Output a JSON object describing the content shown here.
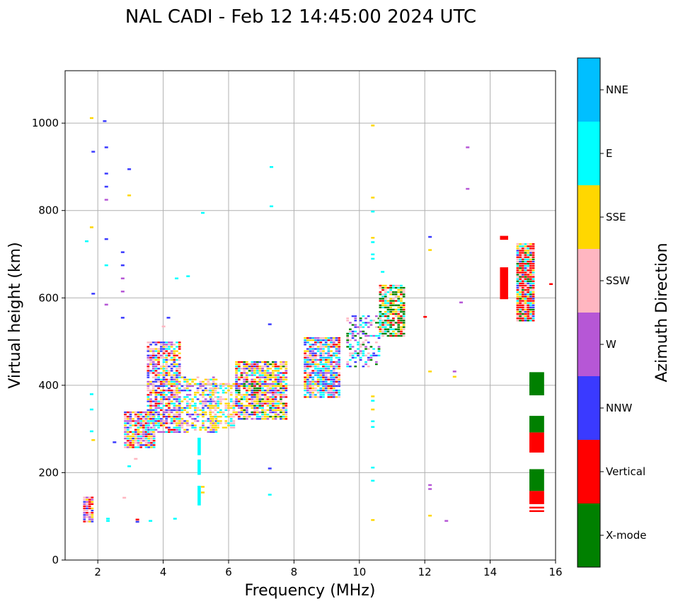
{
  "chart_data": {
    "type": "scatter",
    "title": "NAL CADI - Feb 12 14:45:00 2024 UTC",
    "xlabel": "Frequency (MHz)",
    "ylabel": "Virtual height (km)",
    "xlim": [
      1,
      16
    ],
    "ylim": [
      0,
      1120
    ],
    "xticks": [
      2,
      4,
      6,
      8,
      10,
      12,
      14,
      16
    ],
    "yticks": [
      0,
      200,
      400,
      600,
      800,
      1000
    ],
    "grid": true,
    "colorbar": {
      "label": "Azimuth Direction",
      "categories": [
        {
          "name": "X-mode",
          "color": "#008000"
        },
        {
          "name": "Vertical",
          "color": "#ff0000"
        },
        {
          "name": "NNW",
          "color": "#3a3aff"
        },
        {
          "name": "W",
          "color": "#b657d6"
        },
        {
          "name": "SSW",
          "color": "#ffb6c1"
        },
        {
          "name": "SSE",
          "color": "#ffd700"
        },
        {
          "name": "E",
          "color": "#00ffff"
        },
        {
          "name": "NNE",
          "color": "#00bfff"
        }
      ]
    },
    "clusters": [
      {
        "x": [
          1.55,
          1.8
        ],
        "y": [
          85,
          145
        ],
        "mix": [
          "Vertical",
          "Vertical",
          "SSW",
          "SSE",
          "W",
          "NNW"
        ],
        "density": 0.9
      },
      {
        "x": [
          2.8,
          3.7
        ],
        "y": [
          255,
          340
        ],
        "mix": [
          "Vertical",
          "E",
          "SSE",
          "NNW",
          "W",
          "SSW"
        ],
        "density": 0.85
      },
      {
        "x": [
          3.5,
          4.5
        ],
        "y": [
          290,
          500
        ],
        "mix": [
          "E",
          "Vertical",
          "SSE",
          "NNW",
          "W",
          "SSW"
        ],
        "density": 0.75
      },
      {
        "x": [
          4.3,
          5.6
        ],
        "y": [
          290,
          420
        ],
        "mix": [
          "E",
          "SSE",
          "SSE",
          "SSW",
          "NNW",
          "W"
        ],
        "density": 0.55
      },
      {
        "x": [
          5.4,
          6.2
        ],
        "y": [
          300,
          405
        ],
        "mix": [
          "SSE",
          "E",
          "SSE",
          "SSW"
        ],
        "density": 0.6
      },
      {
        "x": [
          6.2,
          7.8
        ],
        "y": [
          320,
          455
        ],
        "mix": [
          "SSE",
          "SSE",
          "SSE",
          "E",
          "X-mode",
          "Vertical",
          "SSW",
          "W",
          "NNW"
        ],
        "density": 0.85
      },
      {
        "x": [
          8.3,
          9.4
        ],
        "y": [
          370,
          510
        ],
        "mix": [
          "W",
          "NNW",
          "E",
          "SSW",
          "NNE",
          "Vertical",
          "SSE"
        ],
        "density": 0.85
      },
      {
        "x": [
          9.6,
          10.6
        ],
        "y": [
          440,
          560
        ],
        "mix": [
          "NNW",
          "W",
          "E",
          "X-mode",
          "SSW"
        ],
        "density": 0.4
      },
      {
        "x": [
          10.6,
          11.4
        ],
        "y": [
          510,
          630
        ],
        "mix": [
          "X-mode",
          "Vertical",
          "SSE",
          "X-mode",
          "E",
          "SSW"
        ],
        "density": 0.85
      },
      {
        "x": [
          14.8,
          15.3
        ],
        "y": [
          545,
          725
        ],
        "mix": [
          "Vertical",
          "Vertical",
          "E",
          "X-mode",
          "NNW",
          "SSW",
          "SSE",
          "Vertical"
        ],
        "density": 1.0
      }
    ],
    "bars": [
      {
        "x": [
          14.3,
          14.55
        ],
        "y": [
          597,
          670
        ],
        "category": "Vertical"
      },
      {
        "x": [
          14.3,
          14.55
        ],
        "y": [
          733,
          742
        ],
        "category": "Vertical"
      },
      {
        "x": [
          15.2,
          15.65
        ],
        "y": [
          377,
          430
        ],
        "category": "X-mode"
      },
      {
        "x": [
          15.2,
          15.65
        ],
        "y": [
          292,
          330
        ],
        "category": "X-mode"
      },
      {
        "x": [
          15.2,
          15.65
        ],
        "y": [
          246,
          292
        ],
        "category": "Vertical"
      },
      {
        "x": [
          15.2,
          15.65
        ],
        "y": [
          158,
          208
        ],
        "category": "X-mode"
      },
      {
        "x": [
          15.2,
          15.65
        ],
        "y": [
          128,
          158
        ],
        "category": "Vertical"
      },
      {
        "x": [
          15.2,
          15.65
        ],
        "y": [
          118,
          122
        ],
        "category": "Vertical"
      },
      {
        "x": [
          15.2,
          15.65
        ],
        "y": [
          110,
          114
        ],
        "category": "Vertical"
      },
      {
        "x": [
          5.05,
          5.15
        ],
        "y": [
          240,
          280
        ],
        "category": "E"
      },
      {
        "x": [
          5.05,
          5.15
        ],
        "y": [
          195,
          230
        ],
        "category": "E"
      },
      {
        "x": [
          5.05,
          5.15
        ],
        "y": [
          125,
          170
        ],
        "category": "E"
      }
    ],
    "points": [
      {
        "x": 1.8,
        "y": 1012,
        "c": "SSE"
      },
      {
        "x": 2.2,
        "y": 1005,
        "c": "NNW"
      },
      {
        "x": 1.85,
        "y": 935,
        "c": "NNW"
      },
      {
        "x": 2.25,
        "y": 945,
        "c": "NNW"
      },
      {
        "x": 2.25,
        "y": 885,
        "c": "NNW"
      },
      {
        "x": 2.25,
        "y": 855,
        "c": "NNW"
      },
      {
        "x": 2.25,
        "y": 825,
        "c": "W"
      },
      {
        "x": 2.95,
        "y": 895,
        "c": "NNW"
      },
      {
        "x": 2.95,
        "y": 835,
        "c": "SSE"
      },
      {
        "x": 1.8,
        "y": 762,
        "c": "SSE"
      },
      {
        "x": 2.25,
        "y": 735,
        "c": "NNW"
      },
      {
        "x": 1.65,
        "y": 730,
        "c": "E"
      },
      {
        "x": 2.25,
        "y": 675,
        "c": "E"
      },
      {
        "x": 2.75,
        "y": 705,
        "c": "NNW"
      },
      {
        "x": 2.75,
        "y": 675,
        "c": "NNW"
      },
      {
        "x": 2.75,
        "y": 645,
        "c": "W"
      },
      {
        "x": 2.75,
        "y": 615,
        "c": "W"
      },
      {
        "x": 1.85,
        "y": 610,
        "c": "NNW"
      },
      {
        "x": 2.25,
        "y": 585,
        "c": "W"
      },
      {
        "x": 2.75,
        "y": 555,
        "c": "NNW"
      },
      {
        "x": 4.4,
        "y": 645,
        "c": "E"
      },
      {
        "x": 4.75,
        "y": 650,
        "c": "E"
      },
      {
        "x": 5.2,
        "y": 795,
        "c": "E"
      },
      {
        "x": 7.3,
        "y": 900,
        "c": "E"
      },
      {
        "x": 7.3,
        "y": 810,
        "c": "E"
      },
      {
        "x": 7.25,
        "y": 540,
        "c": "NNW"
      },
      {
        "x": 7.25,
        "y": 210,
        "c": "NNW"
      },
      {
        "x": 7.25,
        "y": 150,
        "c": "E"
      },
      {
        "x": 10.4,
        "y": 995,
        "c": "SSE"
      },
      {
        "x": 10.4,
        "y": 830,
        "c": "SSE"
      },
      {
        "x": 10.4,
        "y": 798,
        "c": "E"
      },
      {
        "x": 10.4,
        "y": 738,
        "c": "SSE"
      },
      {
        "x": 10.4,
        "y": 728,
        "c": "E"
      },
      {
        "x": 10.4,
        "y": 700,
        "c": "E"
      },
      {
        "x": 10.4,
        "y": 690,
        "c": "E"
      },
      {
        "x": 10.7,
        "y": 660,
        "c": "E"
      },
      {
        "x": 10.4,
        "y": 375,
        "c": "SSE"
      },
      {
        "x": 10.4,
        "y": 365,
        "c": "E"
      },
      {
        "x": 10.4,
        "y": 345,
        "c": "SSE"
      },
      {
        "x": 10.4,
        "y": 318,
        "c": "E"
      },
      {
        "x": 10.4,
        "y": 305,
        "c": "E"
      },
      {
        "x": 10.4,
        "y": 212,
        "c": "E"
      },
      {
        "x": 10.4,
        "y": 182,
        "c": "E"
      },
      {
        "x": 10.4,
        "y": 92,
        "c": "SSE"
      },
      {
        "x": 12.15,
        "y": 740,
        "c": "NNW"
      },
      {
        "x": 12.15,
        "y": 710,
        "c": "SSE"
      },
      {
        "x": 12.0,
        "y": 557,
        "c": "Vertical"
      },
      {
        "x": 12.15,
        "y": 432,
        "c": "SSE"
      },
      {
        "x": 12.15,
        "y": 172,
        "c": "W"
      },
      {
        "x": 12.15,
        "y": 163,
        "c": "W"
      },
      {
        "x": 12.15,
        "y": 102,
        "c": "SSE"
      },
      {
        "x": 12.65,
        "y": 90,
        "c": "W"
      },
      {
        "x": 13.3,
        "y": 945,
        "c": "W"
      },
      {
        "x": 13.3,
        "y": 850,
        "c": "W"
      },
      {
        "x": 13.1,
        "y": 590,
        "c": "W"
      },
      {
        "x": 12.9,
        "y": 432,
        "c": "W"
      },
      {
        "x": 12.9,
        "y": 420,
        "c": "SSE"
      },
      {
        "x": 15.85,
        "y": 632,
        "c": "Vertical"
      },
      {
        "x": 1.8,
        "y": 380,
        "c": "E"
      },
      {
        "x": 1.8,
        "y": 345,
        "c": "E"
      },
      {
        "x": 1.8,
        "y": 295,
        "c": "E"
      },
      {
        "x": 1.85,
        "y": 275,
        "c": "SSE"
      },
      {
        "x": 2.5,
        "y": 270,
        "c": "NNW"
      },
      {
        "x": 2.3,
        "y": 95,
        "c": "E"
      },
      {
        "x": 2.3,
        "y": 90,
        "c": "E"
      },
      {
        "x": 3.2,
        "y": 93,
        "c": "Vertical"
      },
      {
        "x": 3.2,
        "y": 88,
        "c": "NNW"
      },
      {
        "x": 3.6,
        "y": 90,
        "c": "E"
      },
      {
        "x": 4.35,
        "y": 95,
        "c": "E"
      },
      {
        "x": 2.95,
        "y": 215,
        "c": "E"
      },
      {
        "x": 5.2,
        "y": 168,
        "c": "SSE"
      },
      {
        "x": 5.2,
        "y": 155,
        "c": "SSE"
      },
      {
        "x": 4.15,
        "y": 555,
        "c": "NNW"
      },
      {
        "x": 4.0,
        "y": 535,
        "c": "SSW"
      },
      {
        "x": 3.15,
        "y": 232,
        "c": "SSW"
      },
      {
        "x": 2.8,
        "y": 143,
        "c": "SSW"
      }
    ]
  }
}
